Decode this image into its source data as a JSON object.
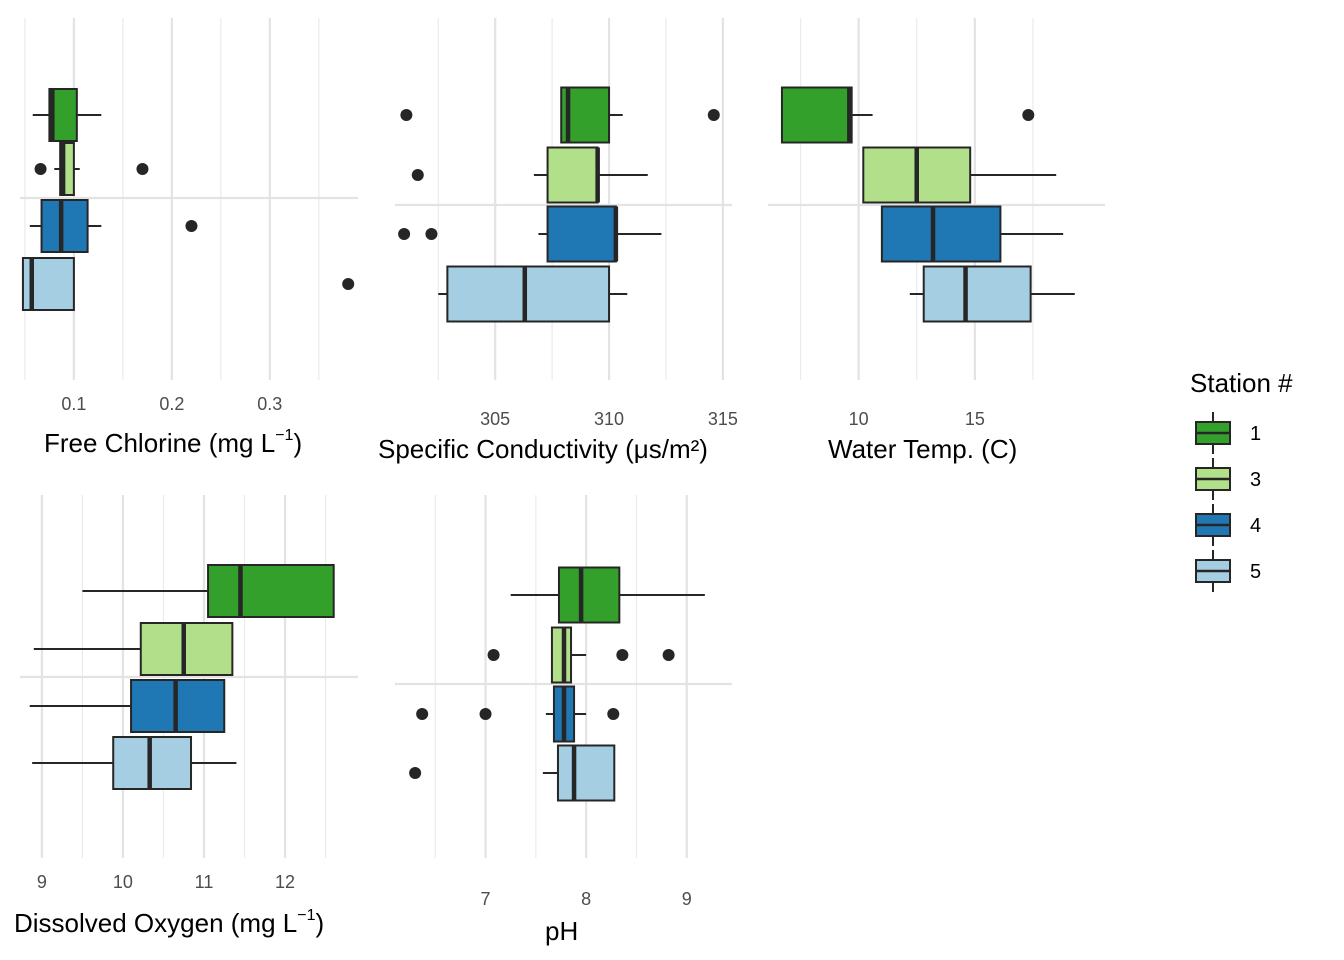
{
  "legend": {
    "title": "Station #",
    "items": [
      {
        "label": "1",
        "color": "#33a02c"
      },
      {
        "label": "3",
        "color": "#b2df8a"
      },
      {
        "label": "4",
        "color": "#1f78b4"
      },
      {
        "label": "5",
        "color": "#a6cee3"
      }
    ]
  },
  "chart_data": [
    {
      "type": "boxplot",
      "xlabel": "Free Chlorine (mg L",
      "xlabel_sup": "−1",
      "xlabel_tail": ")",
      "xlim": [
        0.045,
        0.39
      ],
      "ticks": [
        0.1,
        0.2,
        0.3
      ],
      "tick_labels": [
        "0.1",
        "0.2",
        "0.3"
      ],
      "minor_ticks": [
        0.05,
        0.15,
        0.25,
        0.35
      ],
      "series": [
        {
          "station": "1",
          "whisker_low": 0.058,
          "q1": 0.075,
          "median": 0.078,
          "q3": 0.103,
          "whisker_high": 0.128,
          "outliers": []
        },
        {
          "station": "3",
          "whisker_low": 0.08,
          "q1": 0.086,
          "median": 0.089,
          "q3": 0.1,
          "whisker_high": 0.106,
          "outliers": [
            0.066,
            0.17
          ]
        },
        {
          "station": "4",
          "whisker_low": 0.055,
          "q1": 0.067,
          "median": 0.087,
          "q3": 0.114,
          "whisker_high": 0.128,
          "outliers": [
            0.22
          ]
        },
        {
          "station": "5",
          "whisker_low": 0.048,
          "q1": 0.048,
          "median": 0.057,
          "q3": 0.1,
          "whisker_high": 0.1,
          "outliers": [
            0.38
          ]
        }
      ]
    },
    {
      "type": "boxplot",
      "xlabel": "Specific Conductivity (μs/m²)",
      "xlim": [
        300.6,
        315.4
      ],
      "ticks": [
        305,
        310,
        315
      ],
      "tick_labels": [
        "305",
        "310",
        "315"
      ],
      "minor_ticks": [
        302.5,
        307.5,
        312.5
      ],
      "series": [
        {
          "station": "1",
          "whisker_low": 307.9,
          "q1": 307.9,
          "median": 308.2,
          "q3": 310.0,
          "whisker_high": 310.6,
          "outliers": [
            301.1,
            314.6
          ]
        },
        {
          "station": "3",
          "whisker_low": 306.7,
          "q1": 307.3,
          "median": 309.5,
          "q3": 309.5,
          "whisker_high": 311.7,
          "outliers": [
            301.6
          ]
        },
        {
          "station": "4",
          "whisker_low": 306.9,
          "q1": 307.3,
          "median": 310.3,
          "q3": 310.3,
          "whisker_high": 312.3,
          "outliers": [
            301.0,
            302.2
          ]
        },
        {
          "station": "5",
          "whisker_low": 302.5,
          "q1": 302.9,
          "median": 306.3,
          "q3": 310.0,
          "whisker_high": 310.8,
          "outliers": []
        }
      ]
    },
    {
      "type": "boxplot",
      "xlabel": "Water Temp. (C)",
      "xlim": [
        6.1,
        20.6
      ],
      "ticks": [
        10,
        15
      ],
      "tick_labels": [
        "10",
        "15"
      ],
      "minor_ticks": [
        7.5,
        12.5,
        17.5
      ],
      "series": [
        {
          "station": "1",
          "whisker_low": 6.7,
          "q1": 6.7,
          "median": 9.6,
          "q3": 9.7,
          "whisker_high": 10.6,
          "outliers": [
            17.3
          ]
        },
        {
          "station": "3",
          "whisker_low": 10.2,
          "q1": 10.2,
          "median": 12.5,
          "q3": 14.8,
          "whisker_high": 18.5,
          "outliers": []
        },
        {
          "station": "4",
          "whisker_low": 11.0,
          "q1": 11.0,
          "median": 13.2,
          "q3": 16.1,
          "whisker_high": 18.8,
          "outliers": []
        },
        {
          "station": "5",
          "whisker_low": 12.2,
          "q1": 12.8,
          "median": 14.6,
          "q3": 17.4,
          "whisker_high": 19.3,
          "outliers": []
        }
      ]
    },
    {
      "type": "boxplot",
      "xlabel": "Dissolved Oxygen (mg L",
      "xlabel_sup": "−1",
      "xlabel_tail": ")",
      "xlim": [
        8.73,
        12.9
      ],
      "ticks": [
        9,
        10,
        11,
        12
      ],
      "tick_labels": [
        "9",
        "10",
        "11",
        "12"
      ],
      "minor_ticks": [
        9.5,
        10.5,
        11.5,
        12.5
      ],
      "series": [
        {
          "station": "1",
          "whisker_low": 9.5,
          "q1": 11.05,
          "median": 11.45,
          "q3": 12.6,
          "whisker_high": 12.6,
          "outliers": []
        },
        {
          "station": "3",
          "whisker_low": 8.9,
          "q1": 10.22,
          "median": 10.75,
          "q3": 11.35,
          "whisker_high": 11.35,
          "outliers": []
        },
        {
          "station": "4",
          "whisker_low": 8.85,
          "q1": 10.1,
          "median": 10.65,
          "q3": 11.25,
          "whisker_high": 11.25,
          "outliers": []
        },
        {
          "station": "5",
          "whisker_low": 8.88,
          "q1": 9.88,
          "median": 10.33,
          "q3": 10.84,
          "whisker_high": 11.4,
          "outliers": []
        }
      ]
    },
    {
      "type": "boxplot",
      "xlabel": "pH",
      "xlim": [
        6.1,
        9.45
      ],
      "ticks": [
        7,
        8,
        9
      ],
      "tick_labels": [
        "7",
        "8",
        "9"
      ],
      "minor_ticks": [
        6.5,
        7.5,
        8.5
      ],
      "series": [
        {
          "station": "1",
          "whisker_low": 7.25,
          "q1": 7.73,
          "median": 7.95,
          "q3": 8.33,
          "whisker_high": 9.18,
          "outliers": []
        },
        {
          "station": "3",
          "whisker_low": 7.66,
          "q1": 7.66,
          "median": 7.78,
          "q3": 7.85,
          "whisker_high": 8.0,
          "outliers": [
            7.08,
            8.36,
            8.82
          ]
        },
        {
          "station": "4",
          "whisker_low": 7.6,
          "q1": 7.68,
          "median": 7.78,
          "q3": 7.88,
          "whisker_high": 8.0,
          "outliers": [
            6.37,
            7.0,
            8.27
          ]
        },
        {
          "station": "5",
          "whisker_low": 7.57,
          "q1": 7.72,
          "median": 7.88,
          "q3": 8.28,
          "whisker_high": 8.28,
          "outliers": [
            6.3
          ]
        }
      ]
    }
  ]
}
